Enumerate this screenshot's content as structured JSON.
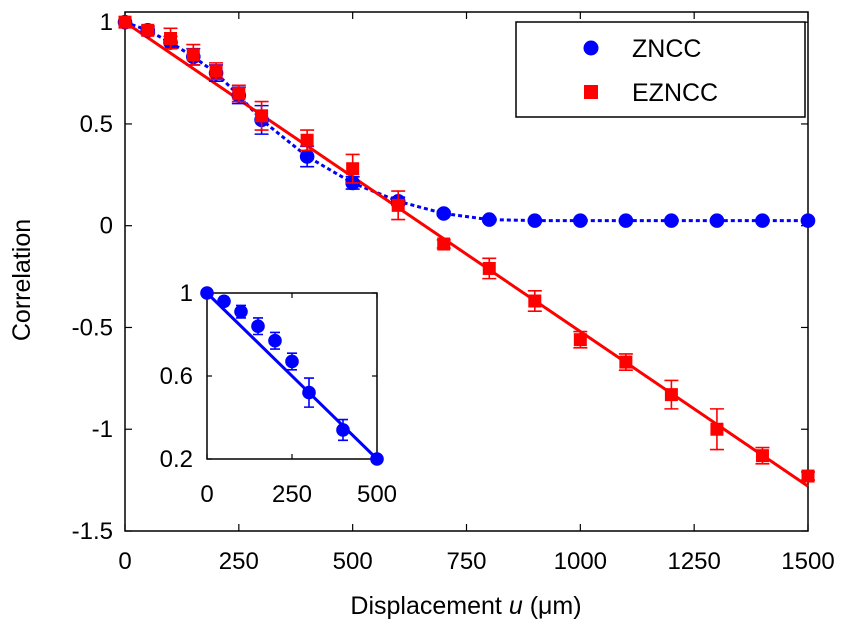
{
  "chart_data": [
    {
      "type": "scatter",
      "xlabel": "Displacement",
      "xlabel_var": "u",
      "xlabel_unit": "(μm)",
      "ylabel": "Correlation",
      "xlim": [
        0,
        1500
      ],
      "ylim": [
        -1.5,
        1.05
      ],
      "x_ticks": [
        0,
        250,
        500,
        750,
        1000,
        1250,
        1500
      ],
      "y_ticks": [
        1,
        0.5,
        0,
        -0.5,
        -1,
        -1.5
      ],
      "x_tick_labels": [
        "0",
        "250",
        "500",
        "750",
        "1000",
        "1250",
        "1500"
      ],
      "y_tick_labels": [
        "1",
        "0.5",
        "0",
        "-0.5",
        "-1",
        "-1.5"
      ],
      "grid": false,
      "legend_position": "top-right",
      "series": [
        {
          "name": "ZNCC",
          "marker": "circle",
          "color": "#0000ff",
          "line": "dotted",
          "x": [
            0,
            50,
            100,
            150,
            200,
            250,
            300,
            400,
            500,
            600,
            700,
            800,
            900,
            1000,
            1100,
            1200,
            1300,
            1400,
            1500
          ],
          "y": [
            1.0,
            0.96,
            0.9,
            0.83,
            0.75,
            0.64,
            0.52,
            0.34,
            0.21,
            0.12,
            0.06,
            0.03,
            0.025,
            0.025,
            0.025,
            0.025,
            0.025,
            0.025,
            0.025
          ],
          "err": [
            0.0,
            0.02,
            0.03,
            0.04,
            0.04,
            0.04,
            0.07,
            0.05,
            0.03,
            0.02,
            0.01,
            0.01,
            0.005,
            0.005,
            0.005,
            0.005,
            0.005,
            0.005,
            0.005
          ]
        },
        {
          "name": "EZNCC",
          "marker": "square",
          "color": "#ff0000",
          "line": "solid",
          "x": [
            0,
            50,
            100,
            150,
            200,
            250,
            300,
            400,
            500,
            600,
            700,
            800,
            900,
            1000,
            1100,
            1200,
            1300,
            1400,
            1500
          ],
          "y": [
            1.0,
            0.96,
            0.92,
            0.84,
            0.76,
            0.65,
            0.54,
            0.42,
            0.28,
            0.1,
            -0.09,
            -0.21,
            -0.37,
            -0.56,
            -0.67,
            -0.83,
            -1.0,
            -1.13,
            -1.23
          ],
          "err": [
            0.0,
            0.02,
            0.05,
            0.05,
            0.04,
            0.04,
            0.07,
            0.05,
            0.07,
            0.07,
            0.02,
            0.05,
            0.05,
            0.04,
            0.04,
            0.07,
            0.1,
            0.04,
            0.02
          ]
        }
      ],
      "fits": [
        {
          "color": "#ff0000",
          "x": [
            0,
            1500
          ],
          "y": [
            1.0,
            -1.28
          ]
        }
      ]
    },
    {
      "type": "scatter",
      "inset": true,
      "xlim": [
        0,
        500
      ],
      "ylim": [
        0.2,
        1.0
      ],
      "x_ticks": [
        0,
        250,
        500
      ],
      "y_ticks": [
        1,
        0.6,
        0.2
      ],
      "x_tick_labels": [
        "0",
        "250",
        "500"
      ],
      "y_tick_labels": [
        "1",
        "0.6",
        "0.2"
      ],
      "series": [
        {
          "marker": "circle",
          "color": "#0000ff",
          "x": [
            0,
            50,
            100,
            150,
            200,
            250,
            300,
            400,
            500
          ],
          "y": [
            1.0,
            0.96,
            0.91,
            0.84,
            0.77,
            0.67,
            0.52,
            0.34,
            0.2
          ],
          "err": [
            0.0,
            0.02,
            0.03,
            0.04,
            0.04,
            0.04,
            0.07,
            0.05,
            0.0
          ]
        }
      ],
      "fits": [
        {
          "color": "#0000ff",
          "x": [
            0,
            500
          ],
          "y": [
            1.0,
            0.2
          ]
        }
      ]
    }
  ]
}
